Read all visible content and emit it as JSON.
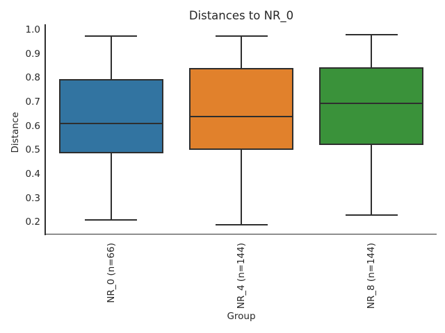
{
  "chart_data": {
    "type": "box",
    "title": "Distances to NR_0",
    "xlabel": "Group",
    "ylabel": "Distance",
    "ylim": [
      0.15,
      1.02
    ],
    "yticks": [
      "0.2",
      "0.3",
      "0.4",
      "0.5",
      "0.6",
      "0.7",
      "0.8",
      "0.9",
      "1.0"
    ],
    "categories": [
      "NR_0 (n=66)",
      "NR_4 (n=144)",
      "NR_8 (n=144)"
    ],
    "series": [
      {
        "name": "NR_0 (n=66)",
        "color": "#3274a1",
        "whisker_low": 0.21,
        "q1": 0.485,
        "median": 0.61,
        "q3": 0.795,
        "whisker_high": 0.975
      },
      {
        "name": "NR_4 (n=144)",
        "color": "#e1812c",
        "whisker_low": 0.19,
        "q1": 0.5,
        "median": 0.64,
        "q3": 0.84,
        "whisker_high": 0.975
      },
      {
        "name": "NR_8 (n=144)",
        "color": "#3a923a",
        "whisker_low": 0.23,
        "q1": 0.52,
        "median": 0.695,
        "q3": 0.845,
        "whisker_high": 0.98
      }
    ],
    "legend": false,
    "grid": false,
    "colors": {
      "edge": "#2e2e2e",
      "text": "#262626",
      "background": "#ffffff"
    }
  }
}
